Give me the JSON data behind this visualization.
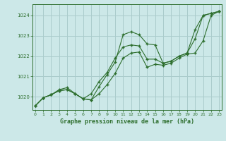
{
  "title": "Graphe pression niveau de la mer (hPa)",
  "bg_color": "#cce8e8",
  "grid_color": "#aacccc",
  "line_color": "#2d6e2d",
  "marker_color": "#2d6e2d",
  "xlim": [
    -0.3,
    23.3
  ],
  "ylim": [
    1019.35,
    1024.55
  ],
  "yticks": [
    1020,
    1021,
    1022,
    1023,
    1024
  ],
  "xticks": [
    0,
    1,
    2,
    3,
    4,
    5,
    6,
    7,
    8,
    9,
    10,
    11,
    12,
    13,
    14,
    15,
    16,
    17,
    18,
    19,
    20,
    21,
    22,
    23
  ],
  "series": [
    [
      1019.55,
      1019.95,
      1020.1,
      1020.3,
      1020.35,
      1020.15,
      1019.9,
      1019.85,
      1020.5,
      1021.1,
      1021.7,
      1023.05,
      1023.2,
      1023.05,
      1022.6,
      1022.55,
      1021.65,
      1021.75,
      1022.0,
      1022.15,
      1023.3,
      1024.0,
      1024.1,
      1024.2
    ],
    [
      1019.55,
      1019.95,
      1020.1,
      1020.3,
      1020.35,
      1020.15,
      1019.9,
      1020.15,
      1020.75,
      1021.2,
      1021.9,
      1022.45,
      1022.55,
      1022.5,
      1021.85,
      1021.85,
      1021.65,
      1021.75,
      1022.0,
      1022.15,
      1022.85,
      1024.0,
      1024.1,
      1024.2
    ],
    [
      1019.55,
      1019.95,
      1020.1,
      1020.35,
      1020.45,
      1020.15,
      1019.9,
      1019.85,
      1020.15,
      1020.6,
      1021.15,
      1021.9,
      1022.15,
      1022.2,
      1021.45,
      1021.6,
      1021.55,
      1021.65,
      1021.9,
      1022.1,
      1022.15,
      1022.75,
      1024.0,
      1024.2
    ]
  ]
}
